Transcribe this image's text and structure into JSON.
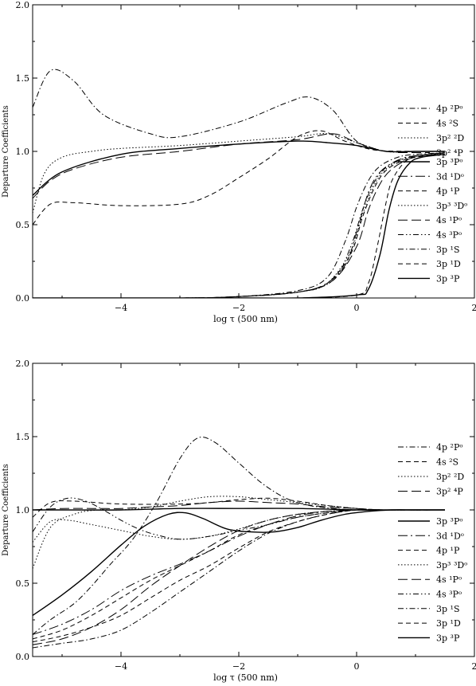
{
  "chart_data": [
    {
      "type": "line",
      "xlabel": "log τ (500 nm)",
      "ylabel": "Departure Coefficients",
      "xlim": [
        -5.5,
        2
      ],
      "ylim": [
        0,
        2
      ],
      "xticks": [
        "-4",
        "-2",
        "0",
        "2"
      ],
      "yticks": [
        "0.0",
        "0.5",
        "1.0",
        "1.5",
        "2.0"
      ],
      "series": [
        {
          "name": "4p ²Pᵒ",
          "style": "dashdot",
          "x": [
            -5.5,
            -5.2,
            -4.8,
            -4.3,
            -3.5,
            -3.0,
            -2.0,
            -1.2,
            -0.8,
            -0.4,
            0.0,
            0.5,
            1.0,
            1.5
          ],
          "y": [
            1.3,
            1.55,
            1.48,
            1.25,
            1.12,
            1.1,
            1.2,
            1.33,
            1.37,
            1.28,
            1.07,
            1.0,
            1.0,
            1.0
          ]
        },
        {
          "name": "4s ²S",
          "style": "dashed",
          "x": [
            -5.5,
            -5.2,
            -4.8,
            -4.0,
            -3.0,
            -2.5,
            -2.0,
            -1.5,
            -1.0,
            -0.6,
            -0.2,
            0.3,
            1.0,
            1.5
          ],
          "y": [
            0.5,
            0.64,
            0.65,
            0.63,
            0.64,
            0.7,
            0.82,
            0.95,
            1.1,
            1.14,
            1.07,
            1.01,
            1.0,
            1.0
          ]
        },
        {
          "name": "3p² ²D",
          "style": "dotted",
          "x": [
            -5.5,
            -5.3,
            -5.0,
            -4.5,
            -4.0,
            -3.0,
            -2.0,
            -1.0,
            -0.5,
            0.0,
            0.5,
            1.0,
            1.5
          ],
          "y": [
            0.58,
            0.85,
            0.96,
            1.0,
            1.02,
            1.04,
            1.07,
            1.1,
            1.12,
            1.06,
            1.0,
            1.0,
            1.0
          ]
        },
        {
          "name": "3p² ⁴P",
          "style": "longdash",
          "x": [
            -5.5,
            -5.2,
            -4.8,
            -4.0,
            -3.0,
            -2.0,
            -1.0,
            -0.4,
            0.0,
            0.5,
            1.0,
            1.5
          ],
          "y": [
            0.68,
            0.8,
            0.88,
            0.96,
            1.0,
            1.05,
            1.08,
            1.12,
            1.06,
            1.0,
            1.0,
            1.0
          ]
        },
        {
          "name": "3p ³Pᵒ",
          "style": "solid",
          "x": [
            -5.5,
            -5.0,
            -4.0,
            -3.0,
            -2.0,
            -1.0,
            -0.5,
            0.0,
            0.5,
            1.0,
            1.5
          ],
          "y": [
            0.7,
            0.86,
            0.98,
            1.02,
            1.05,
            1.07,
            1.06,
            1.04,
            1.0,
            1.0,
            1.0
          ]
        },
        {
          "name": "3d ¹Dᵒ",
          "style": "longdashdot",
          "x": [
            -5.5,
            -3.0,
            -2.0,
            -1.2,
            -0.6,
            -0.2,
            0.0,
            0.2,
            0.4,
            0.7,
            1.0,
            1.5
          ],
          "y": [
            0.0,
            0.0,
            0.01,
            0.03,
            0.08,
            0.22,
            0.45,
            0.72,
            0.86,
            0.94,
            0.97,
            0.98
          ]
        },
        {
          "name": "4p ¹P",
          "style": "dashed",
          "x": [
            -5.5,
            -3.0,
            -2.0,
            -1.0,
            -0.5,
            -0.1,
            0.1,
            0.3,
            0.5,
            0.8,
            1.1,
            1.5
          ],
          "y": [
            0.0,
            0.0,
            0.01,
            0.04,
            0.1,
            0.3,
            0.55,
            0.75,
            0.87,
            0.94,
            0.97,
            0.99
          ]
        },
        {
          "name": "3p³ ³Dᵒ",
          "style": "dotted",
          "x": [
            -5.5,
            -3.0,
            -2.0,
            -1.0,
            -0.5,
            -0.1,
            0.1,
            0.3,
            0.5,
            0.8,
            1.1,
            1.5
          ],
          "y": [
            0.0,
            0.0,
            0.01,
            0.04,
            0.1,
            0.32,
            0.57,
            0.77,
            0.88,
            0.95,
            0.97,
            0.99
          ]
        },
        {
          "name": "4s ¹Pᵒ",
          "style": "longdash",
          "x": [
            -5.5,
            -3.0,
            -2.0,
            -1.0,
            -0.4,
            0.0,
            0.2,
            0.4,
            0.6,
            0.9,
            1.2,
            1.5
          ],
          "y": [
            0.0,
            0.0,
            0.01,
            0.04,
            0.12,
            0.35,
            0.6,
            0.78,
            0.88,
            0.95,
            0.98,
            0.99
          ]
        },
        {
          "name": "4s ³Pᵒ",
          "style": "dashdotdot",
          "x": [
            -5.5,
            -3.0,
            -2.0,
            -1.0,
            -0.4,
            -0.1,
            0.1,
            0.3,
            0.5,
            0.8,
            1.1,
            1.5
          ],
          "y": [
            0.0,
            0.0,
            0.01,
            0.04,
            0.12,
            0.35,
            0.6,
            0.79,
            0.89,
            0.95,
            0.97,
            0.99
          ]
        },
        {
          "name": "3p ¹S",
          "style": "dashdot",
          "x": [
            -5.5,
            -3.0,
            -2.0,
            -1.0,
            -0.5,
            -0.2,
            0.0,
            0.2,
            0.4,
            0.7,
            1.0,
            1.5
          ],
          "y": [
            0.0,
            0.0,
            0.01,
            0.05,
            0.14,
            0.38,
            0.62,
            0.8,
            0.9,
            0.96,
            0.98,
            0.99
          ]
        },
        {
          "name": "3p ¹D",
          "style": "dashed",
          "x": [
            -5.5,
            -2.0,
            -1.0,
            0.0,
            0.2,
            0.35,
            0.5,
            0.6,
            0.8,
            1.0,
            1.5
          ],
          "y": [
            0.0,
            0.0,
            0.0,
            0.02,
            0.1,
            0.35,
            0.65,
            0.8,
            0.92,
            0.96,
            0.98
          ]
        },
        {
          "name": "3p ³P",
          "style": "solid",
          "x": [
            -5.5,
            -2.0,
            -1.0,
            0.0,
            0.2,
            0.4,
            0.55,
            0.7,
            0.9,
            1.1,
            1.5
          ],
          "y": [
            0.0,
            0.0,
            0.0,
            0.02,
            0.06,
            0.3,
            0.6,
            0.8,
            0.92,
            0.96,
            0.98
          ]
        }
      ]
    },
    {
      "type": "line",
      "xlabel": "log τ (500 nm)",
      "ylabel": "Departure Coefficients",
      "xlim": [
        -5.5,
        2
      ],
      "ylim": [
        0,
        2
      ],
      "xticks": [
        "-4",
        "-2",
        "0",
        "2"
      ],
      "yticks": [
        "0.0",
        "0.5",
        "1.0",
        "1.5",
        "2.0"
      ],
      "series": [
        {
          "name": "4p ²Pᵒ",
          "style": "dashdot",
          "x": [
            -5.5,
            -5.2,
            -4.8,
            -4.5,
            -4.2,
            -3.8,
            -3.4,
            -3.0,
            -2.7,
            -2.4,
            -2.0,
            -1.6,
            -1.2,
            -0.8,
            -0.4,
            0.0,
            0.5,
            1.5
          ],
          "y": [
            0.15,
            0.25,
            0.36,
            0.48,
            0.62,
            0.8,
            1.05,
            1.35,
            1.49,
            1.46,
            1.32,
            1.18,
            1.08,
            1.03,
            1.01,
            1.0,
            1.0,
            1.0
          ]
        },
        {
          "name": "4s ²S",
          "style": "dashed",
          "x": [
            -5.5,
            -5.2,
            -4.8,
            -4.0,
            -3.0,
            -2.5,
            -2.0,
            -1.5,
            -1.0,
            -0.5,
            0.0,
            0.5,
            1.5
          ],
          "y": [
            0.95,
            1.05,
            1.06,
            1.04,
            1.04,
            1.05,
            1.07,
            1.08,
            1.06,
            1.03,
            1.01,
            1.0,
            1.0
          ]
        },
        {
          "name": "3p² ²D",
          "style": "dotted",
          "x": [
            -5.5,
            -5.2,
            -4.8,
            -4.4,
            -4.0,
            -3.5,
            -3.0,
            -2.5,
            -2.0,
            -1.5,
            -1.0,
            -0.5,
            0.0,
            0.5,
            1.5
          ],
          "y": [
            0.6,
            0.88,
            0.97,
            1.0,
            1.0,
            1.02,
            1.06,
            1.09,
            1.09,
            1.07,
            1.05,
            1.03,
            1.01,
            1.0,
            1.0
          ]
        },
        {
          "name": "3p² ⁴P",
          "style": "longdash",
          "x": [
            -5.5,
            -5.0,
            -4.5,
            -4.0,
            -3.5,
            -3.0,
            -2.5,
            -2.0,
            -1.5,
            -1.0,
            -0.5,
            0.0,
            0.5,
            1.5
          ],
          "y": [
            1.0,
            1.01,
            1.01,
            1.01,
            1.02,
            1.03,
            1.05,
            1.06,
            1.05,
            1.04,
            1.02,
            1.01,
            1.0,
            1.0
          ]
        },
        {
          "name": "3p ³Pᵒ",
          "style": "solid",
          "x": [
            -5.5,
            -5.0,
            -4.0,
            -3.0,
            -2.0,
            -1.0,
            0.0,
            0.5,
            1.5
          ],
          "y": [
            1.0,
            1.0,
            1.0,
            1.01,
            1.01,
            1.01,
            1.0,
            1.0,
            1.0
          ]
        },
        {
          "name": "3d ¹Dᵒ",
          "style": "longdashdot",
          "x": [
            -5.5,
            -5.0,
            -4.5,
            -4.0,
            -3.5,
            -3.0,
            -2.5,
            -2.0,
            -1.5,
            -1.0,
            -0.5,
            0.0,
            0.5,
            1.5
          ],
          "y": [
            0.15,
            0.22,
            0.32,
            0.45,
            0.55,
            0.63,
            0.72,
            0.82,
            0.9,
            0.96,
            0.99,
            1.0,
            1.0,
            1.0
          ]
        },
        {
          "name": "4p ¹P",
          "style": "dashed",
          "x": [
            -5.5,
            -5.0,
            -4.5,
            -4.0,
            -3.5,
            -3.0,
            -2.5,
            -2.0,
            -1.5,
            -1.0,
            -0.5,
            0.0,
            0.5,
            1.5
          ],
          "y": [
            0.12,
            0.18,
            0.28,
            0.4,
            0.52,
            0.62,
            0.72,
            0.83,
            0.9,
            0.95,
            0.98,
            1.0,
            1.0,
            1.0
          ]
        },
        {
          "name": "3p³ ³Dᵒ",
          "style": "dotted",
          "x": [
            -5.5,
            -5.2,
            -4.9,
            -4.5,
            -4.0,
            -3.5,
            -3.0,
            -2.5,
            -2.0,
            -1.5,
            -1.0,
            -0.5,
            0.0,
            0.5,
            1.5
          ],
          "y": [
            0.78,
            0.92,
            0.93,
            0.9,
            0.86,
            0.82,
            0.8,
            0.82,
            0.87,
            0.93,
            0.97,
            0.99,
            1.0,
            1.0,
            1.0
          ]
        },
        {
          "name": "4s ¹Pᵒ",
          "style": "longdash",
          "x": [
            -5.5,
            -5.0,
            -4.5,
            -4.0,
            -3.5,
            -3.0,
            -2.5,
            -2.0,
            -1.5,
            -1.0,
            -0.5,
            0.0,
            0.5,
            1.5
          ],
          "y": [
            0.08,
            0.12,
            0.2,
            0.32,
            0.48,
            0.62,
            0.75,
            0.86,
            0.93,
            0.97,
            0.99,
            1.0,
            1.0,
            1.0
          ]
        },
        {
          "name": "4s ³Pᵒ",
          "style": "dashdotdot",
          "x": [
            -5.5,
            -5.2,
            -4.9,
            -4.6,
            -4.3,
            -4.0,
            -3.7,
            -3.4,
            -3.0,
            -2.5,
            -2.0,
            -1.5,
            -1.0,
            -0.5,
            0.0,
            0.5,
            1.5
          ],
          "y": [
            0.85,
            1.02,
            1.08,
            1.06,
            1.0,
            0.93,
            0.87,
            0.83,
            0.8,
            0.82,
            0.86,
            0.9,
            0.95,
            0.98,
            1.0,
            1.0,
            1.0
          ]
        },
        {
          "name": "3p ¹S",
          "style": "dashdot",
          "x": [
            -5.5,
            -5.0,
            -4.5,
            -4.0,
            -3.5,
            -3.0,
            -2.5,
            -2.0,
            -1.5,
            -1.0,
            -0.5,
            0.0,
            0.5,
            1.5
          ],
          "y": [
            0.06,
            0.09,
            0.12,
            0.18,
            0.3,
            0.44,
            0.58,
            0.72,
            0.84,
            0.92,
            0.97,
            1.0,
            1.0,
            1.0
          ]
        },
        {
          "name": "3p ¹D",
          "style": "dashed",
          "x": [
            -5.5,
            -5.0,
            -4.5,
            -4.0,
            -3.5,
            -3.0,
            -2.5,
            -2.0,
            -1.5,
            -1.0,
            -0.5,
            0.0,
            0.5,
            1.5
          ],
          "y": [
            0.1,
            0.14,
            0.2,
            0.28,
            0.4,
            0.52,
            0.62,
            0.74,
            0.85,
            0.92,
            0.97,
            1.0,
            1.0,
            1.0
          ]
        },
        {
          "name": "3p ³P",
          "style": "solid",
          "x": [
            -5.5,
            -5.0,
            -4.5,
            -4.0,
            -3.6,
            -3.2,
            -2.9,
            -2.6,
            -2.2,
            -1.8,
            -1.4,
            -1.0,
            -0.6,
            -0.2,
            0.2,
            0.6,
            1.0,
            1.5
          ],
          "y": [
            0.28,
            0.42,
            0.58,
            0.76,
            0.89,
            0.97,
            0.98,
            0.94,
            0.87,
            0.85,
            0.85,
            0.88,
            0.93,
            0.97,
            0.99,
            1.0,
            1.0,
            1.0
          ]
        }
      ]
    }
  ]
}
